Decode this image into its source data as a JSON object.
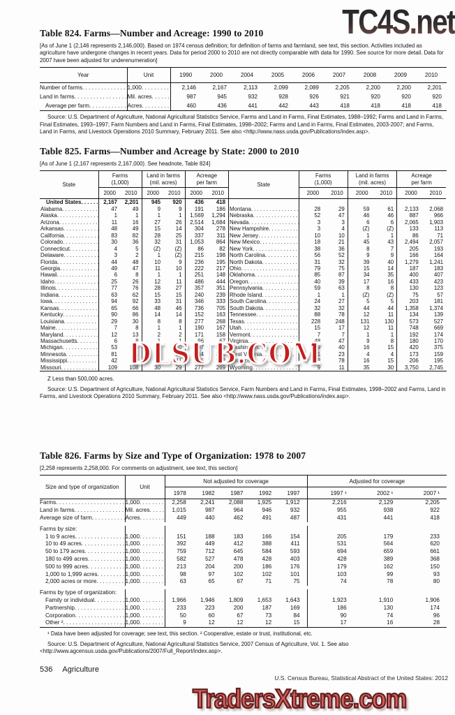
{
  "watermarks": {
    "top": "TC4S.net",
    "middle": "DLSUB.COM",
    "bottom": "TradersXtreme.com"
  },
  "footer": {
    "page": "536",
    "section": "Agriculture",
    "credit": "U.S. Census Bureau, Statistical Abstract of the United States: 2012"
  },
  "table824": {
    "title": "Table 824. Farms—Number and Acreage: 1990 to 2010",
    "headnote": "[As of June 1 (2,146 represents 2,146,000). Based on 1974 census definition; for definition of farms and farmland, see text, this section. Activities included as agriculture have undergone changes in recent years. Data for period 2000 to 2010 are not directly comparable with data for 1990. See source for more detail. Data for 2007 have been adjusted for underenumeration]",
    "col_year": "Year",
    "col_unit": "Unit",
    "years": [
      "1990",
      "2000",
      "2004",
      "2005",
      "2006",
      "2007",
      "2008",
      "2009",
      "2010"
    ],
    "rows": [
      {
        "label": "Number of farms",
        "unit": "1,000",
        "values": [
          "2,146",
          "2,167",
          "2,113",
          "2,099",
          "2,089",
          "2,205",
          "2,200",
          "2,200",
          "2,201"
        ]
      },
      {
        "label": "Land in farms",
        "unit": "Mil. acres",
        "values": [
          "987",
          "945",
          "932",
          "928",
          "926",
          "921",
          "920",
          "920",
          "920"
        ]
      },
      {
        "label": "Average per farm",
        "indent": 1,
        "unit": "Acres",
        "values": [
          "460",
          "436",
          "441",
          "442",
          "443",
          "418",
          "418",
          "418",
          "418"
        ]
      }
    ],
    "source": "Source: U.S. Department of Agriculture, National Agricultural Statistics Service, Farms and Land in Farms, Final Estimates, 1988–1992; Farms and Land in Farms, Final Estimates, 1993–1997; Farm Numbers and Land in Farms, Final Estimates, 1998–2002; Farms and Land in Farms, Final Estimates, 2003-2007; and Farms, Land in Farms, and Livestock Operations 2010 Summary, February 2011. See also <http://www.nass.usda.gov/Publications/index.asp>."
  },
  "table825": {
    "title": "Table 825. Farms—Number and Acreage by State: 2000 to 2010",
    "headnote": "[As of June 1 (2,167 represents 2,167,000). See headnote, Table 824]",
    "col_state": "State",
    "groups": [
      {
        "l1": "Farms",
        "l2": "(1,000)"
      },
      {
        "l1": "Land in farms",
        "l2": "(mil. acres)"
      },
      {
        "l1": "Acreage",
        "l2": "per farm"
      }
    ],
    "years": [
      "2000",
      "2010"
    ],
    "left_rows": [
      {
        "state": "United States",
        "bold": true,
        "indent": 1,
        "values": [
          "2,167",
          "2,201",
          "945",
          "920",
          "436",
          "418"
        ]
      },
      {
        "state": "Alabama",
        "values": [
          "47",
          "49",
          "9",
          "9",
          "191",
          "186"
        ]
      },
      {
        "state": "Alaska",
        "values": [
          "1",
          "1",
          "1",
          "1",
          "1,569",
          "1,294"
        ]
      },
      {
        "state": "Arizona",
        "values": [
          "11",
          "16",
          "27",
          "26",
          "2,514",
          "1,684"
        ]
      },
      {
        "state": "Arkansas",
        "values": [
          "48",
          "49",
          "15",
          "14",
          "304",
          "278"
        ]
      },
      {
        "state": "California",
        "values": [
          "83",
          "82",
          "28",
          "25",
          "337",
          "311"
        ]
      },
      {
        "state": "Colorado",
        "values": [
          "30",
          "36",
          "32",
          "31",
          "1,053",
          "864"
        ]
      },
      {
        "state": "Connecticut",
        "values": [
          "4",
          "5",
          "(Z)",
          "(Z)",
          "86",
          "82"
        ]
      },
      {
        "state": "Delaware",
        "values": [
          "3",
          "2",
          "1",
          "(Z)",
          "215",
          "198"
        ]
      },
      {
        "state": "Florida",
        "values": [
          "44",
          "48",
          "10",
          "9",
          "236",
          "195"
        ]
      },
      {
        "state": "Georgia",
        "values": [
          "49",
          "47",
          "11",
          "10",
          "222",
          "217"
        ]
      },
      {
        "state": "Hawaii",
        "values": [
          "6",
          "8",
          "1",
          "1",
          "251",
          "148"
        ]
      },
      {
        "state": "Idaho",
        "values": [
          "25",
          "26",
          "12",
          "11",
          "486",
          "444"
        ]
      },
      {
        "state": "Illinois",
        "values": [
          "77",
          "76",
          "28",
          "27",
          "357",
          "351"
        ]
      },
      {
        "state": "Indiana",
        "values": [
          "63",
          "62",
          "15",
          "15",
          "240",
          "239"
        ]
      },
      {
        "state": "Iowa",
        "values": [
          "94",
          "92",
          "33",
          "31",
          "346",
          "333"
        ]
      },
      {
        "state": "Kansas",
        "values": [
          "65",
          "66",
          "48",
          "46",
          "736",
          "705"
        ]
      },
      {
        "state": "Kentucky",
        "values": [
          "90",
          "86",
          "14",
          "14",
          "152",
          "163"
        ]
      },
      {
        "state": "Louisiana",
        "values": [
          "29",
          "30",
          "8",
          "8",
          "277",
          "268"
        ]
      },
      {
        "state": "Maine",
        "values": [
          "7",
          "8",
          "1",
          "1",
          "190",
          "167"
        ]
      },
      {
        "state": "Maryland",
        "values": [
          "12",
          "13",
          "2",
          "2",
          "171",
          "158"
        ]
      },
      {
        "state": "Massachusetts",
        "values": [
          "6",
          "8",
          "1",
          "1",
          "96",
          "67"
        ]
      },
      {
        "state": "Michigan",
        "values": [
          "53",
          "56",
          "10",
          "10",
          "197",
          "179"
        ]
      },
      {
        "state": "Minnesota",
        "values": [
          "81",
          "81",
          "28",
          "27",
          "344",
          "332"
        ]
      },
      {
        "state": "Mississippi",
        "values": [
          "42",
          "42",
          "11",
          "11",
          "266",
          "263"
        ]
      },
      {
        "state": "Missouri",
        "values": [
          "109",
          "108",
          "30",
          "29",
          "277",
          "269"
        ]
      }
    ],
    "right_rows": [
      {
        "state": "",
        "values": [
          "",
          "",
          "",
          "",
          "",
          ""
        ]
      },
      {
        "state": "Montana",
        "values": [
          "28",
          "29",
          "59",
          "61",
          "2,133",
          "2,068"
        ]
      },
      {
        "state": "Nebraska",
        "values": [
          "52",
          "47",
          "46",
          "46",
          "887",
          "966"
        ]
      },
      {
        "state": "Nevada",
        "values": [
          "3",
          "3",
          "6",
          "6",
          "2,065",
          "1,903"
        ]
      },
      {
        "state": "New Hampshire",
        "values": [
          "3",
          "4",
          "(Z)",
          "(Z)",
          "133",
          "113"
        ]
      },
      {
        "state": "New Jersey",
        "values": [
          "10",
          "10",
          "1",
          "1",
          "86",
          "71"
        ]
      },
      {
        "state": "New Mexico",
        "values": [
          "18",
          "21",
          "45",
          "43",
          "2,494",
          "2,057"
        ]
      },
      {
        "state": "New York",
        "values": [
          "38",
          "36",
          "8",
          "7",
          "205",
          "193"
        ]
      },
      {
        "state": "North Carolina",
        "values": [
          "56",
          "52",
          "9",
          "9",
          "166",
          "164"
        ]
      },
      {
        "state": "North Dakota",
        "values": [
          "31",
          "32",
          "39",
          "40",
          "1,279",
          "1,241"
        ]
      },
      {
        "state": "Ohio",
        "values": [
          "79",
          "75",
          "15",
          "14",
          "187",
          "183"
        ]
      },
      {
        "state": "Oklahoma",
        "values": [
          "85",
          "87",
          "34",
          "35",
          "400",
          "407"
        ]
      },
      {
        "state": "Oregon",
        "values": [
          "40",
          "39",
          "17",
          "16",
          "433",
          "423"
        ]
      },
      {
        "state": "Pennsylvania",
        "values": [
          "59",
          "63",
          "8",
          "8",
          "130",
          "123"
        ]
      },
      {
        "state": "Rhode Island",
        "values": [
          "1",
          "1",
          "(Z)",
          "(Z)",
          "75",
          "57"
        ]
      },
      {
        "state": "South Carolina",
        "values": [
          "24",
          "27",
          "5",
          "5",
          "203",
          "181"
        ]
      },
      {
        "state": "South Dakota",
        "values": [
          "32",
          "32",
          "44",
          "44",
          "1,358",
          "1,374"
        ]
      },
      {
        "state": "Tennessee",
        "values": [
          "88",
          "78",
          "12",
          "11",
          "134",
          "139"
        ]
      },
      {
        "state": "Texas",
        "values": [
          "228",
          "248",
          "131",
          "130",
          "573",
          "527"
        ]
      },
      {
        "state": "Utah",
        "values": [
          "15",
          "17",
          "12",
          "11",
          "748",
          "669"
        ]
      },
      {
        "state": "Vermont",
        "values": [
          "7",
          "7",
          "1",
          "1",
          "192",
          "174"
        ]
      },
      {
        "state": "Virginia",
        "values": [
          "48",
          "47",
          "9",
          "8",
          "180",
          "170"
        ]
      },
      {
        "state": "Washington",
        "values": [
          "39",
          "40",
          "16",
          "15",
          "420",
          "375"
        ]
      },
      {
        "state": "West Virginia",
        "values": [
          "21",
          "23",
          "4",
          "4",
          "173",
          "159"
        ]
      },
      {
        "state": "Wisconsin",
        "values": [
          "78",
          "78",
          "16",
          "15",
          "206",
          "195"
        ]
      },
      {
        "state": "Wyoming",
        "values": [
          "9",
          "11",
          "35",
          "30",
          "3,750",
          "2,745"
        ]
      }
    ],
    "footnote": "Z Less than 500,000 acres.",
    "source": "Source: U.S. Department of Agriculture, National Agricultural Statistics Service, Farm Numbers and Land in Farms, Final Estimates, 1998–2002 and Farms, Land in Farms, and Livestock Operations 2010 Summary, February 2011. See also <http://www.nass.usda.gov/Publications/index.asp>."
  },
  "table826": {
    "title": "Table 826. Farms by Size and Type of Organization: 1978 to 2007",
    "headnote": "[2,258 represents 2,258,000. For comments on adjustment, see text, this section]",
    "col_label": "Size and type of organization",
    "col_unit": "Unit",
    "group_na": "Not adjusted for coverage",
    "group_adj": "Adjusted for coverage",
    "years_na": [
      "1978",
      "1982",
      "1987",
      "1992",
      "1997"
    ],
    "years_adj": [
      "1997 ¹",
      "2002 ¹",
      "2007 ¹"
    ],
    "rows": [
      {
        "label": "Farms",
        "unit": "1,000",
        "values": [
          "2,258",
          "2,241",
          "2,088",
          "1,925",
          "1,912",
          "2,216",
          "2,129",
          "2,205"
        ]
      },
      {
        "label": "Land in farms",
        "unit": "Mil. acres",
        "values": [
          "1,015",
          "987",
          "964",
          "946",
          "932",
          "955",
          "938",
          "922"
        ]
      },
      {
        "label": "Average size of farm",
        "unit": "Acres",
        "values": [
          "449",
          "440",
          "462",
          "491",
          "487",
          "431",
          "441",
          "418"
        ]
      },
      {
        "label": "Farms by size:",
        "section": true
      },
      {
        "label": "1 to 9 acres",
        "indent": 1,
        "unit": "1,000",
        "values": [
          "151",
          "188",
          "183",
          "166",
          "154",
          "205",
          "179",
          "233"
        ]
      },
      {
        "label": "10 to 49 acres",
        "indent": 1,
        "unit": "1,000",
        "values": [
          "392",
          "449",
          "412",
          "388",
          "411",
          "531",
          "564",
          "620"
        ]
      },
      {
        "label": "50 to 179 acres",
        "indent": 1,
        "unit": "1,000",
        "values": [
          "759",
          "712",
          "645",
          "584",
          "593",
          "694",
          "659",
          "661"
        ]
      },
      {
        "label": "180 to 499 acres",
        "indent": 1,
        "unit": "1,000",
        "values": [
          "582",
          "527",
          "478",
          "428",
          "403",
          "428",
          "389",
          "368"
        ]
      },
      {
        "label": "500 to 999 acres",
        "indent": 1,
        "unit": "1,000",
        "values": [
          "213",
          "204",
          "200",
          "186",
          "176",
          "179",
          "162",
          "150"
        ]
      },
      {
        "label": "1,000 to 1,999 acres",
        "indent": 1,
        "unit": "1,000",
        "values": [
          "98",
          "97",
          "102",
          "102",
          "101",
          "103",
          "99",
          "93"
        ]
      },
      {
        "label": "2,000 acres or more",
        "indent": 1,
        "unit": "1,000",
        "values": [
          "63",
          "65",
          "67",
          "71",
          "75",
          "74",
          "78",
          "80"
        ]
      },
      {
        "label": "Farms by type of organization:",
        "section": true
      },
      {
        "label": "Family or individual",
        "indent": 1,
        "unit": "1,000",
        "values": [
          "1,966",
          "1,946",
          "1,809",
          "1,653",
          "1,643",
          "1,923",
          "1,910",
          "1,906"
        ]
      },
      {
        "label": "Partnership",
        "indent": 1,
        "unit": "1,000",
        "values": [
          "233",
          "223",
          "200",
          "187",
          "169",
          "186",
          "130",
          "174"
        ]
      },
      {
        "label": "Corporation",
        "indent": 1,
        "unit": "1,000",
        "values": [
          "50",
          "60",
          "67",
          "73",
          "84",
          "90",
          "74",
          "96"
        ]
      },
      {
        "label": "Other ²",
        "indent": 1,
        "unit": "1,000",
        "values": [
          "9",
          "12",
          "12",
          "12",
          "15",
          "17",
          "16",
          "28"
        ]
      }
    ],
    "footnote": "¹ Data have been adjusted for coverage; see text, this section. ² Cooperative, estate or trust, institutional, etc.",
    "source": "Source: U.S. Department of Agriculture, National Agricultural Statistics Service, 2007 Census of Agriculture, Vol. 1. See also <http://www.agcensus.usda.gov/Publications/2007/Full_Report/index.asp>."
  }
}
